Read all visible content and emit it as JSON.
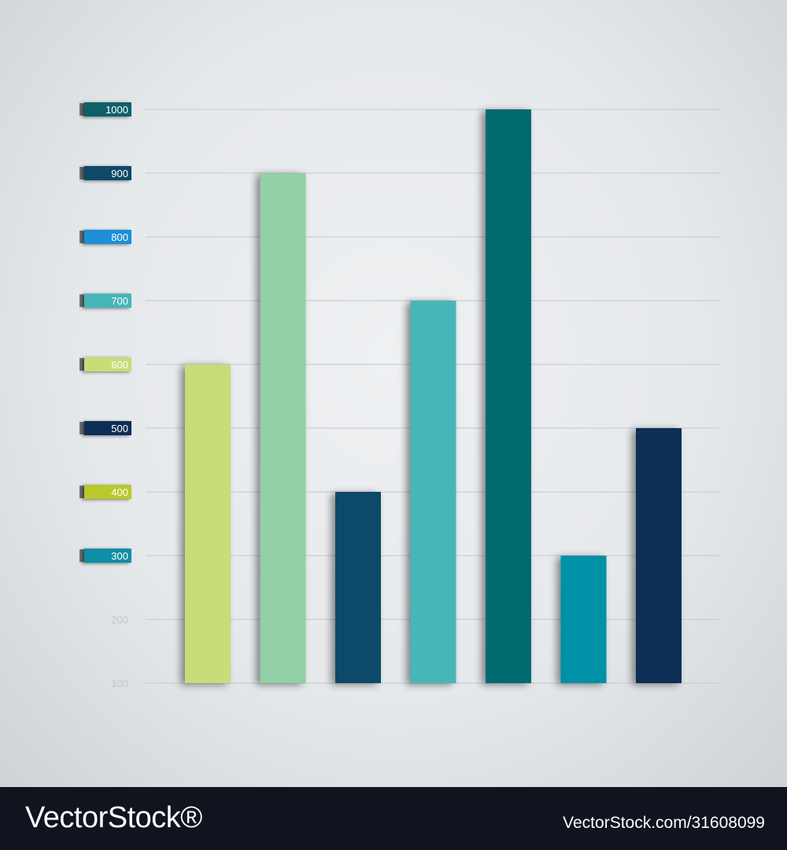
{
  "chart_data": {
    "type": "bar",
    "title": "",
    "xlabel": "",
    "ylabel": "",
    "ylim": [
      100,
      1000
    ],
    "yticks": [
      {
        "label": "1000",
        "value": 1000,
        "color": "#0a6068",
        "badge": true
      },
      {
        "label": "900",
        "value": 900,
        "color": "#0b4a67",
        "badge": true
      },
      {
        "label": "800",
        "value": 800,
        "color": "#1f8fd6",
        "badge": true
      },
      {
        "label": "700",
        "value": 700,
        "color": "#46b6b8",
        "badge": true
      },
      {
        "label": "600",
        "value": 600,
        "color": "#c8dc78",
        "badge": true
      },
      {
        "label": "500",
        "value": 500,
        "color": "#0a2e55",
        "badge": true
      },
      {
        "label": "400",
        "value": 400,
        "color": "#b9c82a",
        "badge": true
      },
      {
        "label": "300",
        "value": 300,
        "color": "#0d8fa6",
        "badge": true
      },
      {
        "label": "200",
        "value": 200,
        "color": "",
        "badge": false
      },
      {
        "label": "100",
        "value": 100,
        "color": "",
        "badge": false
      }
    ],
    "values": [
      600,
      900,
      400,
      700,
      1000,
      300,
      500
    ],
    "colors": [
      "#c8dc78",
      "#93d0a6",
      "#0b4a67",
      "#46b6b8",
      "#056a70",
      "#0090a7",
      "#0a2e55"
    ],
    "grid": true,
    "legend": "none"
  },
  "footer": {
    "brand": "VectorStock®",
    "image_id": "VectorStock.com/31608099"
  }
}
